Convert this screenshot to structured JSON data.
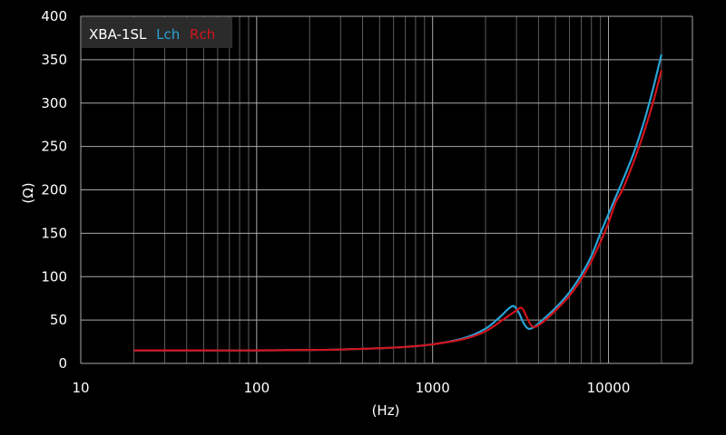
{
  "chart_data": {
    "type": "line",
    "title": "XBA-1SL",
    "xlabel": "(Hz)",
    "ylabel": "(Ω)",
    "xscale": "log",
    "xlim": [
      10,
      30000
    ],
    "ylim": [
      0,
      400
    ],
    "grid": "on",
    "legend_position": "top-left",
    "x_ticks": [
      "10",
      "100",
      "1000",
      "10000"
    ],
    "y_ticks": [
      "0",
      "50",
      "100",
      "150",
      "200",
      "250",
      "300",
      "350",
      "400"
    ],
    "series": [
      {
        "name": "Lch",
        "color": "#29a3d6",
        "points": [
          [
            20,
            15
          ],
          [
            50,
            15
          ],
          [
            100,
            15
          ],
          [
            200,
            15.5
          ],
          [
            300,
            16
          ],
          [
            500,
            17.5
          ],
          [
            700,
            19
          ],
          [
            1000,
            22
          ],
          [
            1500,
            29
          ],
          [
            2000,
            40
          ],
          [
            2400,
            53
          ],
          [
            2700,
            63
          ],
          [
            2900,
            66
          ],
          [
            3100,
            58
          ],
          [
            3300,
            46
          ],
          [
            3500,
            40
          ],
          [
            3700,
            41
          ],
          [
            4000,
            46
          ],
          [
            5000,
            64
          ],
          [
            6000,
            82
          ],
          [
            7000,
            102
          ],
          [
            8000,
            124
          ],
          [
            9000,
            150
          ],
          [
            10000,
            172
          ],
          [
            11000,
            192
          ],
          [
            12000,
            210
          ],
          [
            14000,
            244
          ],
          [
            16000,
            280
          ],
          [
            18000,
            318
          ],
          [
            20000,
            356
          ]
        ]
      },
      {
        "name": "Rch",
        "color": "#d2131c",
        "points": [
          [
            20,
            15
          ],
          [
            50,
            15
          ],
          [
            100,
            15
          ],
          [
            200,
            15.5
          ],
          [
            300,
            16
          ],
          [
            500,
            17.5
          ],
          [
            700,
            19
          ],
          [
            1000,
            22
          ],
          [
            1500,
            28
          ],
          [
            2000,
            37
          ],
          [
            2500,
            50
          ],
          [
            2900,
            59
          ],
          [
            3200,
            64
          ],
          [
            3400,
            55
          ],
          [
            3600,
            45
          ],
          [
            3800,
            42
          ],
          [
            4200,
            47
          ],
          [
            5000,
            61
          ],
          [
            6000,
            78
          ],
          [
            7000,
            97
          ],
          [
            8000,
            118
          ],
          [
            9000,
            140
          ],
          [
            10000,
            162
          ],
          [
            11000,
            186
          ],
          [
            12000,
            200
          ],
          [
            14000,
            234
          ],
          [
            16000,
            268
          ],
          [
            18000,
            302
          ],
          [
            20000,
            338
          ]
        ]
      }
    ]
  },
  "legend": {
    "title": "XBA-1SL",
    "items": [
      {
        "label": "Lch",
        "color": "#29a3d6"
      },
      {
        "label": "Rch",
        "color": "#d2131c"
      }
    ]
  },
  "colors": {
    "background": "#000000",
    "plot_background": "#000000",
    "major_grid": "#a9a9a9",
    "minor_grid": "#5c5c5c",
    "legend_box": "#2b2b2b",
    "text": "#ffffff"
  }
}
